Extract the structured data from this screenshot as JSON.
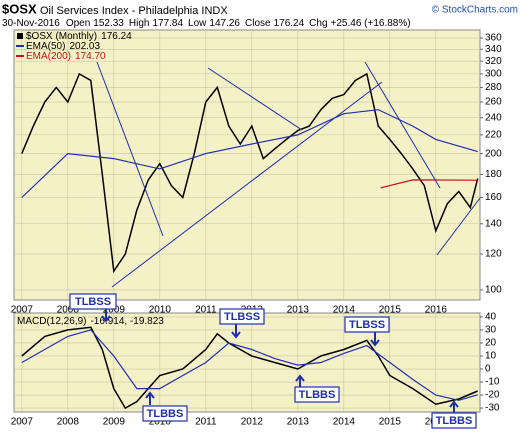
{
  "header": {
    "symbol": "$OSX",
    "title": "Oil Services Index - Philadelphia INDX",
    "copyright": "© StockCharts.com",
    "date": "30-Nov-2016",
    "stats": [
      {
        "label": "Open",
        "value": 152.33
      },
      {
        "label": "High",
        "value": 177.84
      },
      {
        "label": "Low",
        "value": 147.26
      },
      {
        "label": "Close",
        "value": 176.24
      },
      {
        "label": "Chg",
        "value": "+25.46 (+16.88%)"
      }
    ]
  },
  "annotations": {
    "signals": [
      "TLBSS",
      "TLBSS",
      "TLBSS",
      "TLBBS",
      "TLBBS",
      "TLBBS"
    ]
  },
  "chart_data": [
    {
      "type": "line",
      "log_scale": true,
      "grid": true,
      "legend": "top-left",
      "xlim": [
        2006.83,
        2016.96
      ],
      "xticks": [
        2007,
        2008,
        2009,
        2010,
        2011,
        2012,
        2013,
        2014,
        2015,
        2016
      ],
      "ylim": [
        95,
        375
      ],
      "yticks": [
        100,
        120,
        140,
        160,
        180,
        200,
        220,
        240,
        260,
        280,
        300,
        320,
        340,
        360
      ],
      "series": [
        {
          "name": "$OSX (Monthly)",
          "last_label": "176.24",
          "color": "#000000",
          "x": [
            2007.0,
            2007.25,
            2007.5,
            2007.75,
            2008.0,
            2008.25,
            2008.5,
            2008.75,
            2009.0,
            2009.25,
            2009.5,
            2009.75,
            2010.0,
            2010.25,
            2010.5,
            2010.75,
            2011.0,
            2011.25,
            2011.5,
            2011.75,
            2012.0,
            2012.25,
            2012.5,
            2012.75,
            2013.0,
            2013.25,
            2013.5,
            2013.75,
            2014.0,
            2014.25,
            2014.5,
            2014.75,
            2015.0,
            2015.25,
            2015.5,
            2015.75,
            2016.0,
            2016.25,
            2016.5,
            2016.75,
            2016.91
          ],
          "values": [
            200,
            230,
            260,
            280,
            260,
            300,
            290,
            180,
            110,
            120,
            150,
            175,
            190,
            170,
            160,
            200,
            260,
            280,
            230,
            210,
            230,
            195,
            205,
            215,
            225,
            230,
            250,
            265,
            270,
            290,
            300,
            230,
            215,
            200,
            185,
            170,
            135,
            155,
            165,
            152,
            176.24
          ]
        },
        {
          "name": "EMA(50)",
          "last_label": "202.03",
          "color": "#1f2fb0",
          "x": [
            2007.0,
            2008.0,
            2009.0,
            2010.0,
            2011.0,
            2012.0,
            2013.0,
            2014.0,
            2014.75,
            2015.5,
            2016.0,
            2016.91
          ],
          "values": [
            160,
            200,
            195,
            185,
            200,
            210,
            220,
            245,
            250,
            230,
            215,
            202.03
          ]
        },
        {
          "name": "EMA(200)",
          "last_label": "174.70",
          "color": "#c0141c",
          "x": [
            2014.8,
            2015.5,
            2016.91
          ],
          "values": [
            168,
            175,
            174.7
          ]
        }
      ]
    },
    {
      "type": "line",
      "title": "MACD(12,26,9)",
      "value_text": "-16.914, -19.823",
      "grid": true,
      "xlim": [
        2006.83,
        2016.96
      ],
      "xticks": [
        2007,
        2008,
        2009,
        2010,
        2011,
        2012,
        2013,
        2014,
        2015,
        2016
      ],
      "ylim": [
        -33,
        43
      ],
      "yticks": [
        40,
        30,
        20,
        10,
        0,
        -10,
        -20,
        -30
      ],
      "series": [
        {
          "name": "MACD",
          "color": "#000000",
          "x": [
            2007.0,
            2007.5,
            2008.0,
            2008.5,
            2008.75,
            2009.0,
            2009.25,
            2009.5,
            2010.0,
            2010.5,
            2011.0,
            2011.25,
            2011.5,
            2012.0,
            2012.5,
            2013.0,
            2013.5,
            2014.0,
            2014.5,
            2014.75,
            2015.0,
            2015.5,
            2016.0,
            2016.5,
            2016.91
          ],
          "values": [
            10,
            25,
            30,
            32,
            15,
            -15,
            -30,
            -25,
            -5,
            0,
            15,
            27,
            20,
            10,
            5,
            0,
            10,
            15,
            22,
            10,
            -5,
            -15,
            -27,
            -23,
            -16.914
          ]
        },
        {
          "name": "Signal",
          "color": "#1f2fb0",
          "x": [
            2007.0,
            2008.0,
            2008.5,
            2009.0,
            2009.5,
            2010.0,
            2010.5,
            2011.0,
            2011.5,
            2012.0,
            2012.5,
            2013.0,
            2013.5,
            2014.0,
            2014.5,
            2015.0,
            2015.5,
            2016.0,
            2016.5,
            2016.91
          ],
          "values": [
            5,
            25,
            30,
            10,
            -15,
            -15,
            -5,
            5,
            20,
            15,
            8,
            3,
            5,
            12,
            18,
            5,
            -8,
            -20,
            -24,
            -19.823
          ]
        }
      ]
    }
  ]
}
